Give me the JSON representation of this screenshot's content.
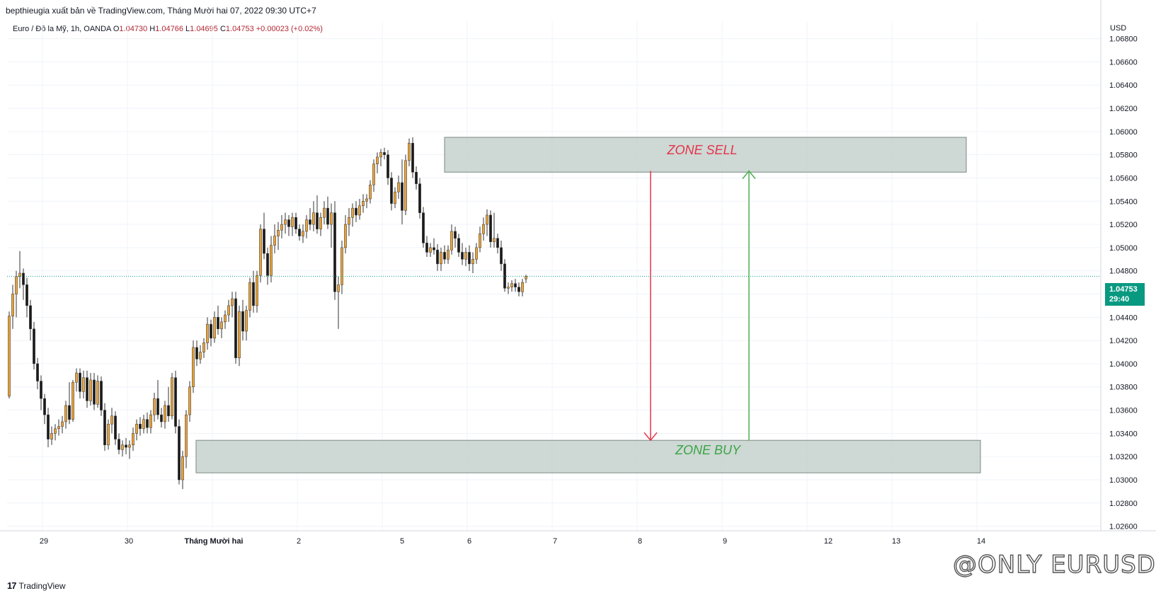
{
  "header": {
    "publisher_line": "bepthieugia xuất bản về TradingView.com, Tháng Mười hai 07, 2022 09:30 UTC+7"
  },
  "symbol": {
    "name": "Euro / Đô la Mỹ, 1h, OANDA",
    "open_label": "O",
    "open": "1.04730",
    "high_label": "H",
    "high": "1.04766",
    "low_label": "L",
    "low": "1.04695",
    "close_label": "C",
    "close": "1.04753",
    "change": "+0.00023 (+0.02%)"
  },
  "price_axis": {
    "currency": "USD",
    "last_price": "1.04753",
    "countdown": "29:40"
  },
  "zones": {
    "sell_label": "ZONE SELL",
    "buy_label": "ZONE BUY"
  },
  "footer": {
    "logo_mark": "17",
    "logo_text": "TradingView"
  },
  "watermark": "@ONLY EURUSD",
  "colors": {
    "up_candle": "#e8a33d",
    "down_candle": "#1b1b1b",
    "zone_fill": "#c6d1cd",
    "sell_text": "#e5334b",
    "buy_text": "#3aa546",
    "sell_arrow": "#e5334b",
    "buy_arrow": "#4caf50",
    "last_price_bg": "#089981"
  },
  "chart_data": {
    "type": "candlestick",
    "ylim": [
      1.025,
      1.0695
    ],
    "y_ticks": [
      "1.06800",
      "1.06600",
      "1.06400",
      "1.06200",
      "1.06000",
      "1.05800",
      "1.05600",
      "1.05400",
      "1.05200",
      "1.05000",
      "1.04800",
      "1.04600",
      "1.04400",
      "1.04200",
      "1.04000",
      "1.03800",
      "1.03600",
      "1.03400",
      "1.03200",
      "1.03000",
      "1.02800",
      "1.02600"
    ],
    "x_ticks": [
      "29",
      "30",
      "Tháng Mười hai",
      "2",
      "5",
      "6",
      "7",
      "8",
      "9",
      "12",
      "13",
      "14"
    ],
    "zones": [
      {
        "name": "ZONE SELL",
        "y_low": 1.0565,
        "y_high": 1.0595
      },
      {
        "name": "ZONE BUY",
        "y_low": 1.0306,
        "y_high": 1.0334
      }
    ],
    "arrows": [
      {
        "direction": "down",
        "from": 1.0566,
        "to": 1.0334
      },
      {
        "direction": "up",
        "from": 1.0334,
        "to": 1.0566
      }
    ],
    "ohlc": [
      [
        1.0372,
        1.0445,
        1.037,
        1.0441
      ],
      [
        1.0441,
        1.0468,
        1.043,
        1.046
      ],
      [
        1.046,
        1.048,
        1.044,
        1.0475
      ],
      [
        1.0475,
        1.0497,
        1.0465,
        1.0478
      ],
      [
        1.0478,
        1.0482,
        1.0455,
        1.0468
      ],
      [
        1.0468,
        1.0474,
        1.044,
        1.045
      ],
      [
        1.045,
        1.0455,
        1.042,
        1.043
      ],
      [
        1.043,
        1.0436,
        1.0395,
        1.04
      ],
      [
        1.04,
        1.0405,
        1.0378,
        1.0385
      ],
      [
        1.0385,
        1.039,
        1.036,
        1.037
      ],
      [
        1.037,
        1.0374,
        1.0348,
        1.0356
      ],
      [
        1.0356,
        1.0362,
        1.0328,
        1.0335
      ],
      [
        1.0335,
        1.0346,
        1.033,
        1.034
      ],
      [
        1.034,
        1.0348,
        1.0334,
        1.0344
      ],
      [
        1.0344,
        1.0352,
        1.0338,
        1.0346
      ],
      [
        1.0346,
        1.0355,
        1.034,
        1.035
      ],
      [
        1.035,
        1.0368,
        1.0344,
        1.0364
      ],
      [
        1.0364,
        1.0384,
        1.0348,
        1.0352
      ],
      [
        1.0352,
        1.0386,
        1.035,
        1.0384
      ],
      [
        1.0384,
        1.0396,
        1.0376,
        1.0392
      ],
      [
        1.0392,
        1.0396,
        1.037,
        1.0376
      ],
      [
        1.0376,
        1.0394,
        1.037,
        1.0388
      ],
      [
        1.0388,
        1.0394,
        1.0362,
        1.0368
      ],
      [
        1.0368,
        1.0392,
        1.0364,
        1.0386
      ],
      [
        1.0386,
        1.0392,
        1.036,
        1.0365
      ],
      [
        1.0365,
        1.039,
        1.0362,
        1.0385
      ],
      [
        1.0385,
        1.0389,
        1.0355,
        1.036
      ],
      [
        1.036,
        1.0366,
        1.0325,
        1.033
      ],
      [
        1.033,
        1.0352,
        1.0326,
        1.0348
      ],
      [
        1.0348,
        1.0362,
        1.034,
        1.0355
      ],
      [
        1.0355,
        1.0359,
        1.033,
        1.0335
      ],
      [
        1.0335,
        1.034,
        1.0322,
        1.0326
      ],
      [
        1.0326,
        1.0334,
        1.032,
        1.033
      ],
      [
        1.033,
        1.0336,
        1.0322,
        1.0328
      ],
      [
        1.0328,
        1.0334,
        1.0318,
        1.033
      ],
      [
        1.033,
        1.0345,
        1.0325,
        1.034
      ],
      [
        1.034,
        1.0352,
        1.0334,
        1.0348
      ],
      [
        1.0348,
        1.0354,
        1.0338,
        1.0344
      ],
      [
        1.0344,
        1.0356,
        1.034,
        1.0352
      ],
      [
        1.0352,
        1.0358,
        1.034,
        1.0345
      ],
      [
        1.0345,
        1.036,
        1.034,
        1.0356
      ],
      [
        1.0356,
        1.0375,
        1.035,
        1.037
      ],
      [
        1.037,
        1.0386,
        1.0352,
        1.0356
      ],
      [
        1.0356,
        1.0362,
        1.0345,
        1.035
      ],
      [
        1.035,
        1.0368,
        1.0344,
        1.0364
      ],
      [
        1.0364,
        1.038,
        1.035,
        1.0355
      ],
      [
        1.0355,
        1.0392,
        1.0352,
        1.0388
      ],
      [
        1.0388,
        1.0394,
        1.034,
        1.0346
      ],
      [
        1.0346,
        1.0352,
        1.0296,
        1.03
      ],
      [
        1.03,
        1.0325,
        1.0292,
        1.032
      ],
      [
        1.032,
        1.036,
        1.031,
        1.0356
      ],
      [
        1.0356,
        1.0385,
        1.035,
        1.038
      ],
      [
        1.038,
        1.042,
        1.0375,
        1.0414
      ],
      [
        1.0414,
        1.042,
        1.0398,
        1.0404
      ],
      [
        1.0404,
        1.0416,
        1.04,
        1.041
      ],
      [
        1.041,
        1.0422,
        1.0405,
        1.0418
      ],
      [
        1.0418,
        1.044,
        1.0412,
        1.0434
      ],
      [
        1.0434,
        1.0438,
        1.0415,
        1.0422
      ],
      [
        1.0422,
        1.0445,
        1.0418,
        1.044
      ],
      [
        1.044,
        1.045,
        1.0425,
        1.043
      ],
      [
        1.043,
        1.044,
        1.0422,
        1.0436
      ],
      [
        1.0436,
        1.0446,
        1.043,
        1.0442
      ],
      [
        1.0442,
        1.0455,
        1.0436,
        1.045
      ],
      [
        1.045,
        1.0462,
        1.044,
        1.0456
      ],
      [
        1.0456,
        1.0462,
        1.04,
        1.0405
      ],
      [
        1.0405,
        1.045,
        1.0398,
        1.0445
      ],
      [
        1.0445,
        1.0455,
        1.042,
        1.0428
      ],
      [
        1.0428,
        1.045,
        1.042,
        1.0446
      ],
      [
        1.0446,
        1.0474,
        1.044,
        1.047
      ],
      [
        1.047,
        1.048,
        1.0444,
        1.045
      ],
      [
        1.045,
        1.048,
        1.0444,
        1.0476
      ],
      [
        1.0476,
        1.052,
        1.047,
        1.0516
      ],
      [
        1.0516,
        1.053,
        1.049,
        1.0495
      ],
      [
        1.0495,
        1.05,
        1.0468,
        1.0476
      ],
      [
        1.0476,
        1.051,
        1.047,
        1.0502
      ],
      [
        1.0502,
        1.052,
        1.0495,
        1.051
      ],
      [
        1.051,
        1.0522,
        1.0498,
        1.0515
      ],
      [
        1.0515,
        1.0528,
        1.0508,
        1.052
      ],
      [
        1.052,
        1.053,
        1.0512,
        1.0524
      ],
      [
        1.0524,
        1.0528,
        1.051,
        1.0518
      ],
      [
        1.0518,
        1.053,
        1.051,
        1.0526
      ],
      [
        1.0526,
        1.053,
        1.0512,
        1.0516
      ],
      [
        1.0516,
        1.052,
        1.0506,
        1.051
      ],
      [
        1.051,
        1.052,
        1.0504,
        1.0514
      ],
      [
        1.0514,
        1.0528,
        1.0508,
        1.0524
      ],
      [
        1.0524,
        1.0534,
        1.0515,
        1.052
      ],
      [
        1.052,
        1.054,
        1.0514,
        1.053
      ],
      [
        1.053,
        1.0545,
        1.0512,
        1.0516
      ],
      [
        1.0516,
        1.053,
        1.051,
        1.0526
      ],
      [
        1.0526,
        1.054,
        1.052,
        1.0534
      ],
      [
        1.0534,
        1.0544,
        1.0516,
        1.052
      ],
      [
        1.052,
        1.0538,
        1.05,
        1.053
      ],
      [
        1.053,
        1.054,
        1.0455,
        1.0462
      ],
      [
        1.0462,
        1.0475,
        1.043,
        1.0468
      ],
      [
        1.0468,
        1.0506,
        1.046,
        1.05
      ],
      [
        1.05,
        1.0528,
        1.0495,
        1.052
      ],
      [
        1.052,
        1.0534,
        1.051,
        1.0526
      ],
      [
        1.0526,
        1.0538,
        1.0518,
        1.0534
      ],
      [
        1.0534,
        1.054,
        1.0522,
        1.0528
      ],
      [
        1.0528,
        1.0542,
        1.0524,
        1.0536
      ],
      [
        1.0536,
        1.0546,
        1.053,
        1.054
      ],
      [
        1.054,
        1.0546,
        1.0534,
        1.0542
      ],
      [
        1.0542,
        1.0558,
        1.0538,
        1.0554
      ],
      [
        1.0554,
        1.0576,
        1.0548,
        1.0572
      ],
      [
        1.0572,
        1.0582,
        1.0564,
        1.0578
      ],
      [
        1.0578,
        1.0585,
        1.057,
        1.0582
      ],
      [
        1.0582,
        1.0586,
        1.0576,
        1.058
      ],
      [
        1.058,
        1.0584,
        1.0554,
        1.056
      ],
      [
        1.056,
        1.0565,
        1.0532,
        1.0538
      ],
      [
        1.0538,
        1.0552,
        1.0534,
        1.0548
      ],
      [
        1.0548,
        1.0562,
        1.0542,
        1.0556
      ],
      [
        1.0556,
        1.0576,
        1.052,
        1.0532
      ],
      [
        1.0532,
        1.058,
        1.0528,
        1.0575
      ],
      [
        1.0575,
        1.0594,
        1.057,
        1.059
      ],
      [
        1.059,
        1.0595,
        1.056,
        1.0565
      ],
      [
        1.0565,
        1.057,
        1.055,
        1.0555
      ],
      [
        1.0555,
        1.056,
        1.0525,
        1.053
      ],
      [
        1.053,
        1.0535,
        1.05,
        1.0504
      ],
      [
        1.0504,
        1.051,
        1.0492,
        1.0496
      ],
      [
        1.0496,
        1.0504,
        1.0492,
        1.05
      ],
      [
        1.05,
        1.0508,
        1.0494,
        1.0498
      ],
      [
        1.0498,
        1.0503,
        1.048,
        1.0486
      ],
      [
        1.0486,
        1.05,
        1.048,
        1.0496
      ],
      [
        1.0496,
        1.0502,
        1.0486,
        1.049
      ],
      [
        1.049,
        1.0502,
        1.0486,
        1.0498
      ],
      [
        1.0498,
        1.052,
        1.0494,
        1.0514
      ],
      [
        1.0514,
        1.0518,
        1.05,
        1.0508
      ],
      [
        1.0508,
        1.0512,
        1.0492,
        1.0496
      ],
      [
        1.0496,
        1.0504,
        1.0485,
        1.049
      ],
      [
        1.049,
        1.05,
        1.0484,
        1.0496
      ],
      [
        1.0496,
        1.0502,
        1.048,
        1.0486
      ],
      [
        1.0486,
        1.0496,
        1.0478,
        1.049
      ],
      [
        1.049,
        1.0504,
        1.0486,
        1.05
      ],
      [
        1.05,
        1.0518,
        1.0496,
        1.0512
      ],
      [
        1.0512,
        1.0526,
        1.0506,
        1.052
      ],
      [
        1.052,
        1.0533,
        1.051,
        1.0528
      ],
      [
        1.0528,
        1.0532,
        1.05,
        1.0505
      ],
      [
        1.0505,
        1.053,
        1.05,
        1.0508
      ],
      [
        1.0508,
        1.0512,
        1.0495,
        1.05
      ],
      [
        1.05,
        1.0506,
        1.048,
        1.0486
      ],
      [
        1.0486,
        1.049,
        1.0462,
        1.0465
      ],
      [
        1.0465,
        1.047,
        1.046,
        1.0466
      ],
      [
        1.0466,
        1.0472,
        1.0462,
        1.0469
      ],
      [
        1.0469,
        1.0473,
        1.0462,
        1.0466
      ],
      [
        1.0466,
        1.047,
        1.0458,
        1.0462
      ],
      [
        1.0462,
        1.0473,
        1.0458,
        1.047
      ],
      [
        1.0473,
        1.04766,
        1.04695,
        1.04753
      ]
    ]
  }
}
